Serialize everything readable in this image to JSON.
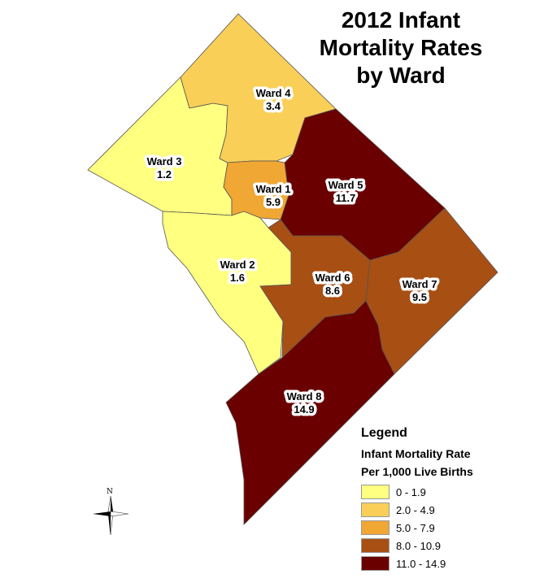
{
  "title": "2012 Infant Mortality Rates by Ward",
  "colors": {
    "c1": "#ffff80",
    "c2": "#f9cf58",
    "c3": "#f0a733",
    "c4": "#a84f14",
    "c5": "#6b0000"
  },
  "wards": [
    {
      "name": "Ward 1",
      "rate": "5.9",
      "cls": "c3"
    },
    {
      "name": "Ward 2",
      "rate": "1.6",
      "cls": "c1"
    },
    {
      "name": "Ward 3",
      "rate": "1.2",
      "cls": "c1"
    },
    {
      "name": "Ward 4",
      "rate": "3.4",
      "cls": "c2"
    },
    {
      "name": "Ward 5",
      "rate": "11.7",
      "cls": "c5"
    },
    {
      "name": "Ward 6",
      "rate": "8.6",
      "cls": "c4"
    },
    {
      "name": "Ward 7",
      "rate": "9.5",
      "cls": "c4"
    },
    {
      "name": "Ward 8",
      "rate": "14.9",
      "cls": "c5"
    }
  ],
  "legend": {
    "heading": "Legend",
    "subtitle1": "Infant Mortality Rate",
    "subtitle2": "Per 1,000 Live Births",
    "classes": [
      {
        "label": "0 - 1.9",
        "color": "#ffff80"
      },
      {
        "label": "2.0 - 4.9",
        "color": "#f9cf58"
      },
      {
        "label": "5.0 - 7.9",
        "color": "#f0a733"
      },
      {
        "label": "8.0 - 10.9",
        "color": "#a84f14"
      },
      {
        "label": "11.0 - 14.9",
        "color": "#6b0000"
      }
    ]
  },
  "compass": {
    "north": "N"
  }
}
